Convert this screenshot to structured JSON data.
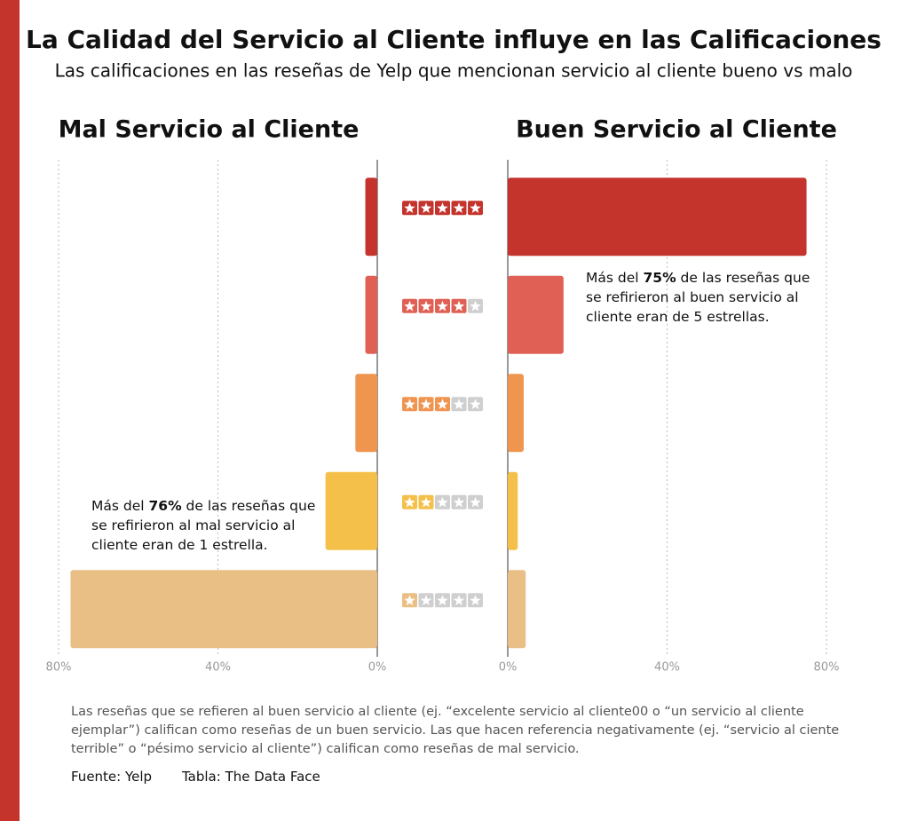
{
  "title": "La Calidad del Servicio al Cliente influye en las Calificaciones",
  "subtitle": "Las calificaciones en las reseñas de Yelp que mencionan servicio al cliente bueno vs malo",
  "stars": [
    5,
    4,
    3,
    2,
    1
  ],
  "star_empty_color": "#cfcfcf",
  "note": "Las reseñas que se refieren al buen servicio al cliente (ej. “excelente servicio al cliente00 o “un servicio al cliente ejemplar”) califican como reseñas de un buen servicio. Las que hacen referencia negativamente (ej. “servicio al ciente terrible” o “pésimo servicio al cliente”) califican como reseñas de mal servicio.",
  "source": "Fuente: Yelp",
  "credit": "Tabla: The Data Face",
  "chart_data": [
    {
      "type": "bar",
      "orientation": "horizontal-left",
      "title": "Mal Servicio al Cliente",
      "categories": [
        null,
        null,
        null,
        null,
        null
      ],
      "values": [
        3,
        3,
        5.5,
        13,
        77
      ],
      "colors": [
        "#c4342d",
        "#e06055",
        "#ef9550",
        "#f5c04a",
        "#e9bf85"
      ],
      "xlim": [
        0,
        80
      ],
      "xticks": [
        {
          "value": 0,
          "label": "0%"
        },
        {
          "value": 40,
          "label": "40%"
        },
        {
          "value": 80,
          "label": "80%"
        }
      ],
      "grid": true,
      "annotation": {
        "before": "Más del",
        "bold": "76%",
        "after": "de las reseñas que se refirieron al mal servicio al cliente eran de 1 estrella."
      }
    },
    {
      "type": "bar",
      "orientation": "horizontal-right",
      "title": "Buen Servicio al Cliente",
      "categories": [
        null,
        null,
        null,
        null,
        null
      ],
      "values": [
        75,
        14,
        4,
        2.5,
        4.5
      ],
      "colors": [
        "#c4342d",
        "#e06055",
        "#ef9550",
        "#f5c04a",
        "#e9bf85"
      ],
      "xlim": [
        0,
        80
      ],
      "xticks": [
        {
          "value": 0,
          "label": "0%"
        },
        {
          "value": 40,
          "label": "40%"
        },
        {
          "value": 80,
          "label": "80%"
        }
      ],
      "grid": true,
      "annotation": {
        "before": "Más del",
        "bold": "75%",
        "after": "de las reseñas que se refirieron al buen servicio al cliente eran de 5 estrellas."
      }
    }
  ]
}
